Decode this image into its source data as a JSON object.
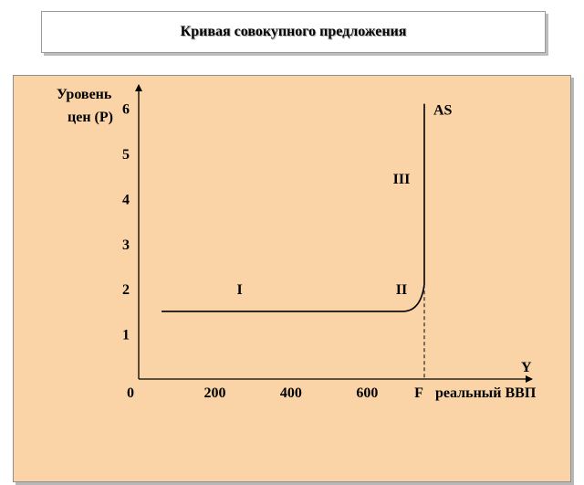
{
  "title": "Кривая  совокупного предложения",
  "chart_data": {
    "type": "line",
    "ylabel": [
      "Уровень",
      "цен (P)"
    ],
    "xlabel": "реальный  ВВП",
    "x_axis_symbol": "Y",
    "origin_label": "0",
    "xlim": [
      0,
      1000
    ],
    "ylim": [
      0,
      6.6
    ],
    "x_ticks": [
      {
        "value": 200,
        "label": "200"
      },
      {
        "value": 400,
        "label": "400"
      },
      {
        "value": 600,
        "label": "600"
      },
      {
        "value": 750,
        "label": "F"
      }
    ],
    "y_ticks": [
      {
        "value": 1,
        "label": "1"
      },
      {
        "value": 2,
        "label": "2"
      },
      {
        "value": 3,
        "label": "3"
      },
      {
        "value": 4,
        "label": "4"
      },
      {
        "value": 5,
        "label": "5"
      },
      {
        "value": 6,
        "label": "6"
      }
    ],
    "series": [
      {
        "name": "AS",
        "points": [
          [
            60,
            1.5
          ],
          [
            690,
            1.5
          ],
          [
            720,
            1.62
          ],
          [
            740,
            1.82
          ],
          [
            750,
            2.1
          ],
          [
            750,
            6.1
          ]
        ]
      }
    ],
    "full_employment_x": 750,
    "segments": [
      {
        "label": "I",
        "x": 265,
        "y": 2
      },
      {
        "label": "II",
        "x": 690,
        "y": 2
      },
      {
        "label": "III",
        "x": 690,
        "y": 4.45
      }
    ],
    "grid": false,
    "colors": {
      "background": "#fad3a7",
      "line": "#000000"
    }
  }
}
